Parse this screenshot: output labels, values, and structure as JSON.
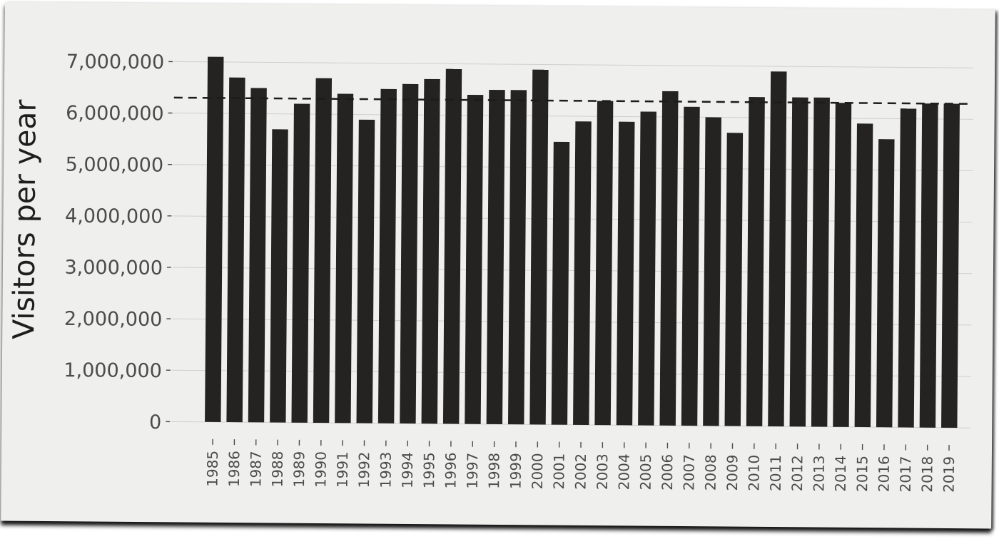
{
  "chart_data": {
    "type": "bar",
    "title": "",
    "xlabel": "",
    "ylabel": "Visitors per year",
    "ylim": [
      0,
      7000000
    ],
    "ytick_values": [
      0,
      1000000,
      2000000,
      3000000,
      4000000,
      5000000,
      6000000,
      7000000
    ],
    "ytick_labels": [
      "0",
      "1,000,000",
      "2,000,000",
      "3,000,000",
      "4,000,000",
      "5,000,000",
      "6,000,000",
      "7,000,000"
    ],
    "categories": [
      "1985",
      "1986",
      "1987",
      "1988",
      "1989",
      "1990",
      "1991",
      "1992",
      "1993",
      "1994",
      "1995",
      "1996",
      "1997",
      "1998",
      "1999",
      "2000",
      "2001",
      "2002",
      "2003",
      "2004",
      "2005",
      "2006",
      "2007",
      "2008",
      "2009",
      "2010",
      "2011",
      "2012",
      "2013",
      "2014",
      "2015",
      "2016",
      "2017",
      "2018",
      "2019"
    ],
    "values": [
      7100000,
      6700000,
      6500000,
      5700000,
      6200000,
      6700000,
      6400000,
      5900000,
      6500000,
      6600000,
      6700000,
      6900000,
      6400000,
      6500000,
      6500000,
      6900000,
      5500000,
      5900000,
      6300000,
      5900000,
      6100000,
      6500000,
      6200000,
      6000000,
      5700000,
      6400000,
      6900000,
      6400000,
      6400000,
      6300000,
      5900000,
      5600000,
      6200000,
      6300000,
      6300000
    ],
    "reference_line": {
      "style": "dashed",
      "value": 6300000
    },
    "grid": true,
    "bar_color": "#242321",
    "background_color": "#efefee"
  }
}
